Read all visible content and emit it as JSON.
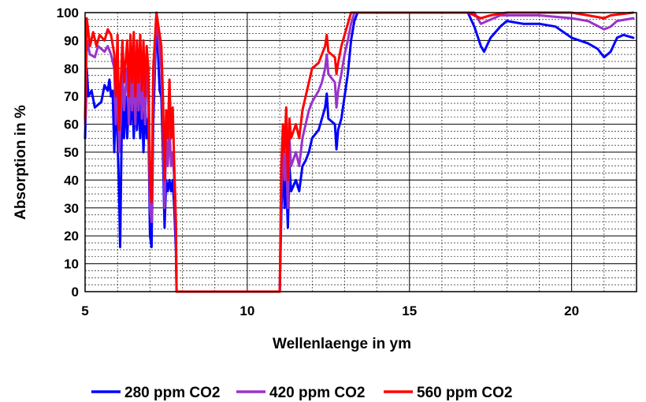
{
  "chart_data": {
    "type": "line",
    "title": "",
    "xlabel": "Wellenlaenge in ym",
    "ylabel": "Absorption in %",
    "xlim": [
      5,
      22
    ],
    "ylim": [
      0,
      100
    ],
    "x_ticks": [
      5,
      10,
      15,
      20
    ],
    "y_ticks": [
      0,
      10,
      20,
      30,
      40,
      50,
      60,
      70,
      80,
      90,
      100
    ],
    "grid": true,
    "legend_position": "bottom",
    "series": [
      {
        "name": "280 ppm CO2",
        "color": "#0000ff",
        "points": [
          [
            5.0,
            55
          ],
          [
            5.05,
            80
          ],
          [
            5.1,
            70
          ],
          [
            5.2,
            72
          ],
          [
            5.3,
            66
          ],
          [
            5.5,
            68
          ],
          [
            5.6,
            74
          ],
          [
            5.7,
            72
          ],
          [
            5.75,
            76
          ],
          [
            5.8,
            70
          ],
          [
            5.85,
            72
          ],
          [
            5.9,
            50
          ],
          [
            5.95,
            72
          ],
          [
            6.0,
            55
          ],
          [
            6.05,
            35
          ],
          [
            6.08,
            16
          ],
          [
            6.12,
            50
          ],
          [
            6.15,
            72
          ],
          [
            6.2,
            55
          ],
          [
            6.25,
            70
          ],
          [
            6.3,
            55
          ],
          [
            6.35,
            70
          ],
          [
            6.4,
            60
          ],
          [
            6.45,
            72
          ],
          [
            6.5,
            55
          ],
          [
            6.55,
            70
          ],
          [
            6.6,
            58
          ],
          [
            6.65,
            72
          ],
          [
            6.7,
            55
          ],
          [
            6.75,
            70
          ],
          [
            6.8,
            50
          ],
          [
            6.85,
            68
          ],
          [
            6.9,
            55
          ],
          [
            6.95,
            62
          ],
          [
            7.0,
            20
          ],
          [
            7.05,
            16
          ],
          [
            7.1,
            60
          ],
          [
            7.2,
            98
          ],
          [
            7.3,
            72
          ],
          [
            7.35,
            70
          ],
          [
            7.4,
            50
          ],
          [
            7.45,
            23
          ],
          [
            7.5,
            40
          ],
          [
            7.55,
            36
          ],
          [
            7.6,
            40
          ],
          [
            7.65,
            36
          ],
          [
            7.7,
            40
          ],
          [
            7.75,
            30
          ],
          [
            7.8,
            15
          ],
          [
            7.82,
            0
          ],
          [
            11.0,
            0
          ],
          [
            11.05,
            28
          ],
          [
            11.1,
            48
          ],
          [
            11.15,
            30
          ],
          [
            11.2,
            40
          ],
          [
            11.25,
            23
          ],
          [
            11.3,
            45
          ],
          [
            11.35,
            36
          ],
          [
            11.5,
            40
          ],
          [
            11.6,
            36
          ],
          [
            11.7,
            45
          ],
          [
            11.8,
            47
          ],
          [
            11.9,
            50
          ],
          [
            12.0,
            55
          ],
          [
            12.2,
            58
          ],
          [
            12.3,
            62
          ],
          [
            12.4,
            66
          ],
          [
            12.45,
            71
          ],
          [
            12.5,
            62
          ],
          [
            12.7,
            60
          ],
          [
            12.75,
            51
          ],
          [
            12.8,
            58
          ],
          [
            12.9,
            62
          ],
          [
            13.0,
            70
          ],
          [
            13.1,
            78
          ],
          [
            13.2,
            90
          ],
          [
            13.3,
            97
          ],
          [
            13.4,
            100
          ],
          [
            14.0,
            100
          ],
          [
            16.8,
            100
          ],
          [
            17.0,
            95
          ],
          [
            17.2,
            88
          ],
          [
            17.3,
            86
          ],
          [
            17.5,
            91
          ],
          [
            17.8,
            95
          ],
          [
            18.0,
            97
          ],
          [
            18.5,
            96
          ],
          [
            19.0,
            96
          ],
          [
            19.5,
            95
          ],
          [
            20.0,
            91
          ],
          [
            20.5,
            89
          ],
          [
            20.8,
            87
          ],
          [
            21.0,
            84
          ],
          [
            21.2,
            86
          ],
          [
            21.4,
            91
          ],
          [
            21.6,
            92
          ],
          [
            21.9,
            91
          ]
        ]
      },
      {
        "name": "420 ppm CO2",
        "color": "#9933cc",
        "points": [
          [
            5.0,
            60
          ],
          [
            5.05,
            90
          ],
          [
            5.15,
            85
          ],
          [
            5.3,
            84
          ],
          [
            5.4,
            88
          ],
          [
            5.6,
            86
          ],
          [
            5.7,
            88
          ],
          [
            5.8,
            85
          ],
          [
            5.9,
            80
          ],
          [
            5.95,
            60
          ],
          [
            6.0,
            85
          ],
          [
            6.05,
            50
          ],
          [
            6.1,
            62
          ],
          [
            6.15,
            80
          ],
          [
            6.2,
            65
          ],
          [
            6.3,
            80
          ],
          [
            6.35,
            60
          ],
          [
            6.4,
            82
          ],
          [
            6.45,
            65
          ],
          [
            6.5,
            84
          ],
          [
            6.55,
            60
          ],
          [
            6.6,
            82
          ],
          [
            6.65,
            65
          ],
          [
            6.7,
            84
          ],
          [
            6.75,
            62
          ],
          [
            6.8,
            80
          ],
          [
            6.85,
            60
          ],
          [
            6.9,
            80
          ],
          [
            6.95,
            70
          ],
          [
            7.0,
            30
          ],
          [
            7.05,
            25
          ],
          [
            7.1,
            70
          ],
          [
            7.2,
            100
          ],
          [
            7.3,
            85
          ],
          [
            7.35,
            80
          ],
          [
            7.4,
            60
          ],
          [
            7.45,
            30
          ],
          [
            7.5,
            55
          ],
          [
            7.55,
            45
          ],
          [
            7.6,
            60
          ],
          [
            7.65,
            45
          ],
          [
            7.7,
            50
          ],
          [
            7.75,
            40
          ],
          [
            7.8,
            20
          ],
          [
            7.82,
            0
          ],
          [
            11.0,
            0
          ],
          [
            11.05,
            35
          ],
          [
            11.1,
            55
          ],
          [
            11.15,
            40
          ],
          [
            11.2,
            50
          ],
          [
            11.25,
            30
          ],
          [
            11.3,
            55
          ],
          [
            11.35,
            45
          ],
          [
            11.5,
            50
          ],
          [
            11.6,
            45
          ],
          [
            11.7,
            55
          ],
          [
            11.8,
            60
          ],
          [
            11.9,
            65
          ],
          [
            12.0,
            68
          ],
          [
            12.2,
            72
          ],
          [
            12.3,
            75
          ],
          [
            12.4,
            80
          ],
          [
            12.45,
            85
          ],
          [
            12.5,
            78
          ],
          [
            12.7,
            75
          ],
          [
            12.75,
            66
          ],
          [
            12.8,
            72
          ],
          [
            12.9,
            78
          ],
          [
            13.0,
            85
          ],
          [
            13.1,
            90
          ],
          [
            13.2,
            96
          ],
          [
            13.3,
            100
          ],
          [
            17.0,
            100
          ],
          [
            17.2,
            96
          ],
          [
            17.4,
            97
          ],
          [
            17.8,
            99
          ],
          [
            18.2,
            99
          ],
          [
            19.0,
            99
          ],
          [
            20.0,
            98
          ],
          [
            20.5,
            97
          ],
          [
            21.0,
            94
          ],
          [
            21.2,
            95
          ],
          [
            21.4,
            97
          ],
          [
            21.9,
            98
          ]
        ]
      },
      {
        "name": "560 ppm CO2",
        "color": "#ff0000",
        "points": [
          [
            5.0,
            62
          ],
          [
            5.05,
            98
          ],
          [
            5.15,
            88
          ],
          [
            5.25,
            93
          ],
          [
            5.35,
            88
          ],
          [
            5.45,
            92
          ],
          [
            5.6,
            90
          ],
          [
            5.7,
            94
          ],
          [
            5.8,
            92
          ],
          [
            5.9,
            85
          ],
          [
            5.95,
            70
          ],
          [
            6.0,
            92
          ],
          [
            6.05,
            58
          ],
          [
            6.1,
            75
          ],
          [
            6.15,
            90
          ],
          [
            6.2,
            75
          ],
          [
            6.3,
            90
          ],
          [
            6.35,
            70
          ],
          [
            6.4,
            92
          ],
          [
            6.45,
            75
          ],
          [
            6.5,
            93
          ],
          [
            6.55,
            70
          ],
          [
            6.6,
            90
          ],
          [
            6.65,
            75
          ],
          [
            6.7,
            92
          ],
          [
            6.75,
            72
          ],
          [
            6.8,
            90
          ],
          [
            6.85,
            70
          ],
          [
            6.9,
            88
          ],
          [
            6.95,
            80
          ],
          [
            7.0,
            38
          ],
          [
            7.05,
            32
          ],
          [
            7.1,
            80
          ],
          [
            7.2,
            100
          ],
          [
            7.3,
            92
          ],
          [
            7.35,
            88
          ],
          [
            7.4,
            70
          ],
          [
            7.45,
            40
          ],
          [
            7.5,
            65
          ],
          [
            7.55,
            55
          ],
          [
            7.6,
            76
          ],
          [
            7.65,
            55
          ],
          [
            7.7,
            66
          ],
          [
            7.75,
            45
          ],
          [
            7.8,
            25
          ],
          [
            7.82,
            0
          ],
          [
            11.0,
            0
          ],
          [
            11.05,
            45
          ],
          [
            11.1,
            60
          ],
          [
            11.15,
            50
          ],
          [
            11.2,
            66
          ],
          [
            11.25,
            40
          ],
          [
            11.3,
            62
          ],
          [
            11.35,
            55
          ],
          [
            11.5,
            60
          ],
          [
            11.6,
            55
          ],
          [
            11.7,
            65
          ],
          [
            11.8,
            70
          ],
          [
            11.9,
            75
          ],
          [
            12.0,
            80
          ],
          [
            12.2,
            82
          ],
          [
            12.3,
            85
          ],
          [
            12.4,
            88
          ],
          [
            12.45,
            92
          ],
          [
            12.5,
            86
          ],
          [
            12.7,
            84
          ],
          [
            12.75,
            78
          ],
          [
            12.8,
            82
          ],
          [
            12.9,
            88
          ],
          [
            13.0,
            92
          ],
          [
            13.1,
            96
          ],
          [
            13.2,
            100
          ],
          [
            16.8,
            100
          ],
          [
            17.0,
            99
          ],
          [
            17.2,
            98
          ],
          [
            17.5,
            99
          ],
          [
            18.0,
            100
          ],
          [
            20.0,
            100
          ],
          [
            20.5,
            99
          ],
          [
            21.0,
            98
          ],
          [
            21.2,
            99
          ],
          [
            21.9,
            100
          ]
        ]
      }
    ]
  }
}
